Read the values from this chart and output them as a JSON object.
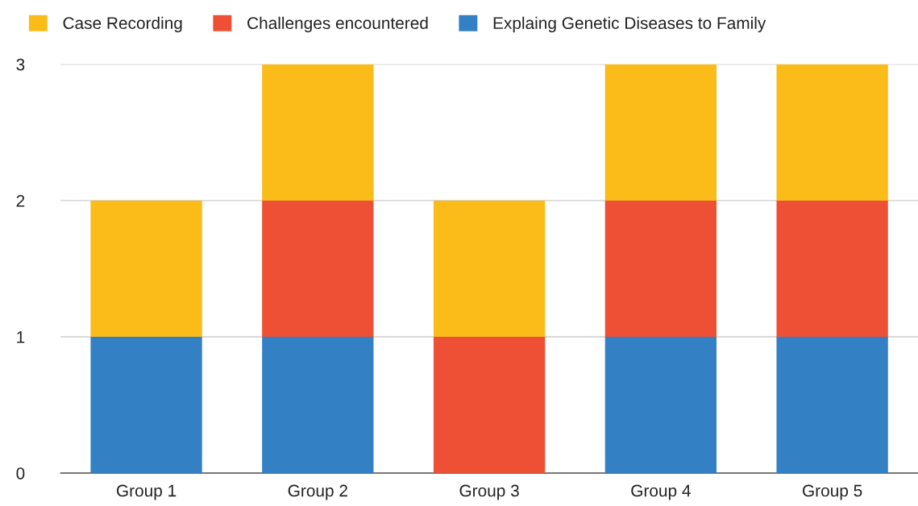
{
  "chart_data": {
    "type": "bar",
    "stacked": true,
    "categories": [
      "Group 1",
      "Group 2",
      "Group 3",
      "Group 4",
      "Group 5"
    ],
    "series": [
      {
        "name": "Explaing Genetic Diseases to Family",
        "color": "#3380c5",
        "values": [
          1,
          1,
          0,
          1,
          1
        ]
      },
      {
        "name": "Challenges encountered",
        "color": "#ee5036",
        "values": [
          0,
          1,
          1,
          1,
          1
        ]
      },
      {
        "name": "Case Recording",
        "color": "#fbbc1a",
        "values": [
          1,
          1,
          1,
          1,
          1
        ]
      }
    ],
    "ylim": [
      0,
      3
    ],
    "yticks": [
      0,
      1,
      2,
      3
    ],
    "grid": "y",
    "legend": "top left"
  }
}
